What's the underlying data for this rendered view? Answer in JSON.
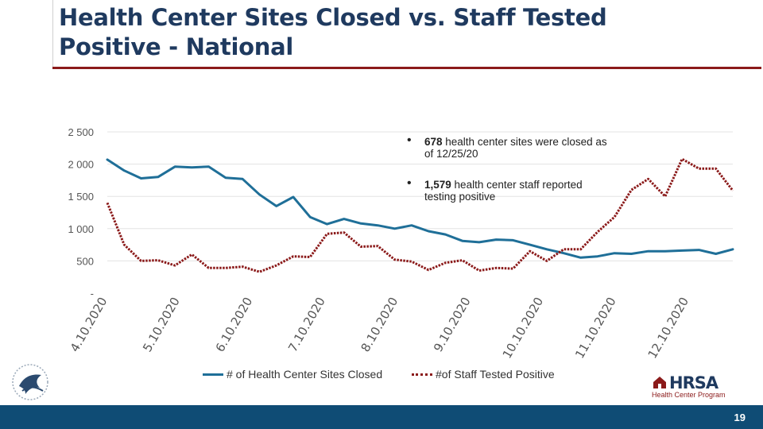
{
  "header": {
    "title": "Health Center Sites Closed vs. Staff Tested Positive - National"
  },
  "annotations": [
    {
      "bold": "678",
      "text": " health center sites were closed as of 12/25/20"
    },
    {
      "bold": "1,579",
      "text": " health center staff reported testing positive"
    }
  ],
  "footer": {
    "page_number": "19",
    "logo_text": "HRSA",
    "logo_sub": "Health Center Program"
  },
  "colors": {
    "sites_line": "#1f6f98",
    "staff_line": "#8b1a1a",
    "footer_bar": "#0f4c75",
    "title_rule": "#8b1a1a"
  },
  "chart_data": {
    "type": "line",
    "title": "",
    "xlabel": "",
    "ylabel": "",
    "ylim": [
      0,
      2500
    ],
    "grid": "horizontal",
    "legend": "bottom",
    "y_tick_labels": [
      "-",
      "500",
      "1 000",
      "1 500",
      "2 000",
      "2 500"
    ],
    "y_tick_values": [
      0,
      500,
      1000,
      1500,
      2000,
      2500
    ],
    "x_tick_labels": [
      "4.10.2020",
      "5.10.2020",
      "6.10.2020",
      "7.10.2020",
      "8.10.2020",
      "9.10.2020",
      "10.10.2020",
      "11.10.2020",
      "12.10.2020"
    ],
    "x_tick_positions": [
      0,
      4.3,
      8.6,
      12.9,
      17.2,
      21.5,
      25.8,
      30.1,
      34.4
    ],
    "series": [
      {
        "name": "# of Health Center Sites Closed",
        "style": "solid",
        "values": [
          2070,
          1900,
          1780,
          1800,
          1960,
          1950,
          1960,
          1790,
          1770,
          1530,
          1350,
          1490,
          1180,
          1070,
          1150,
          1080,
          1050,
          1000,
          1050,
          960,
          910,
          810,
          790,
          830,
          820,
          750,
          680,
          620,
          550,
          570,
          620,
          610,
          650,
          650,
          660,
          670,
          610,
          680
        ]
      },
      {
        "name": "#of Staff Tested Positive",
        "style": "dotted",
        "values": [
          1400,
          750,
          500,
          510,
          430,
          600,
          390,
          390,
          410,
          330,
          430,
          570,
          560,
          920,
          940,
          720,
          730,
          520,
          490,
          360,
          470,
          510,
          350,
          390,
          380,
          650,
          500,
          680,
          680,
          950,
          1180,
          1600,
          1770,
          1500,
          2080,
          1930,
          1930,
          1590
        ]
      }
    ]
  }
}
